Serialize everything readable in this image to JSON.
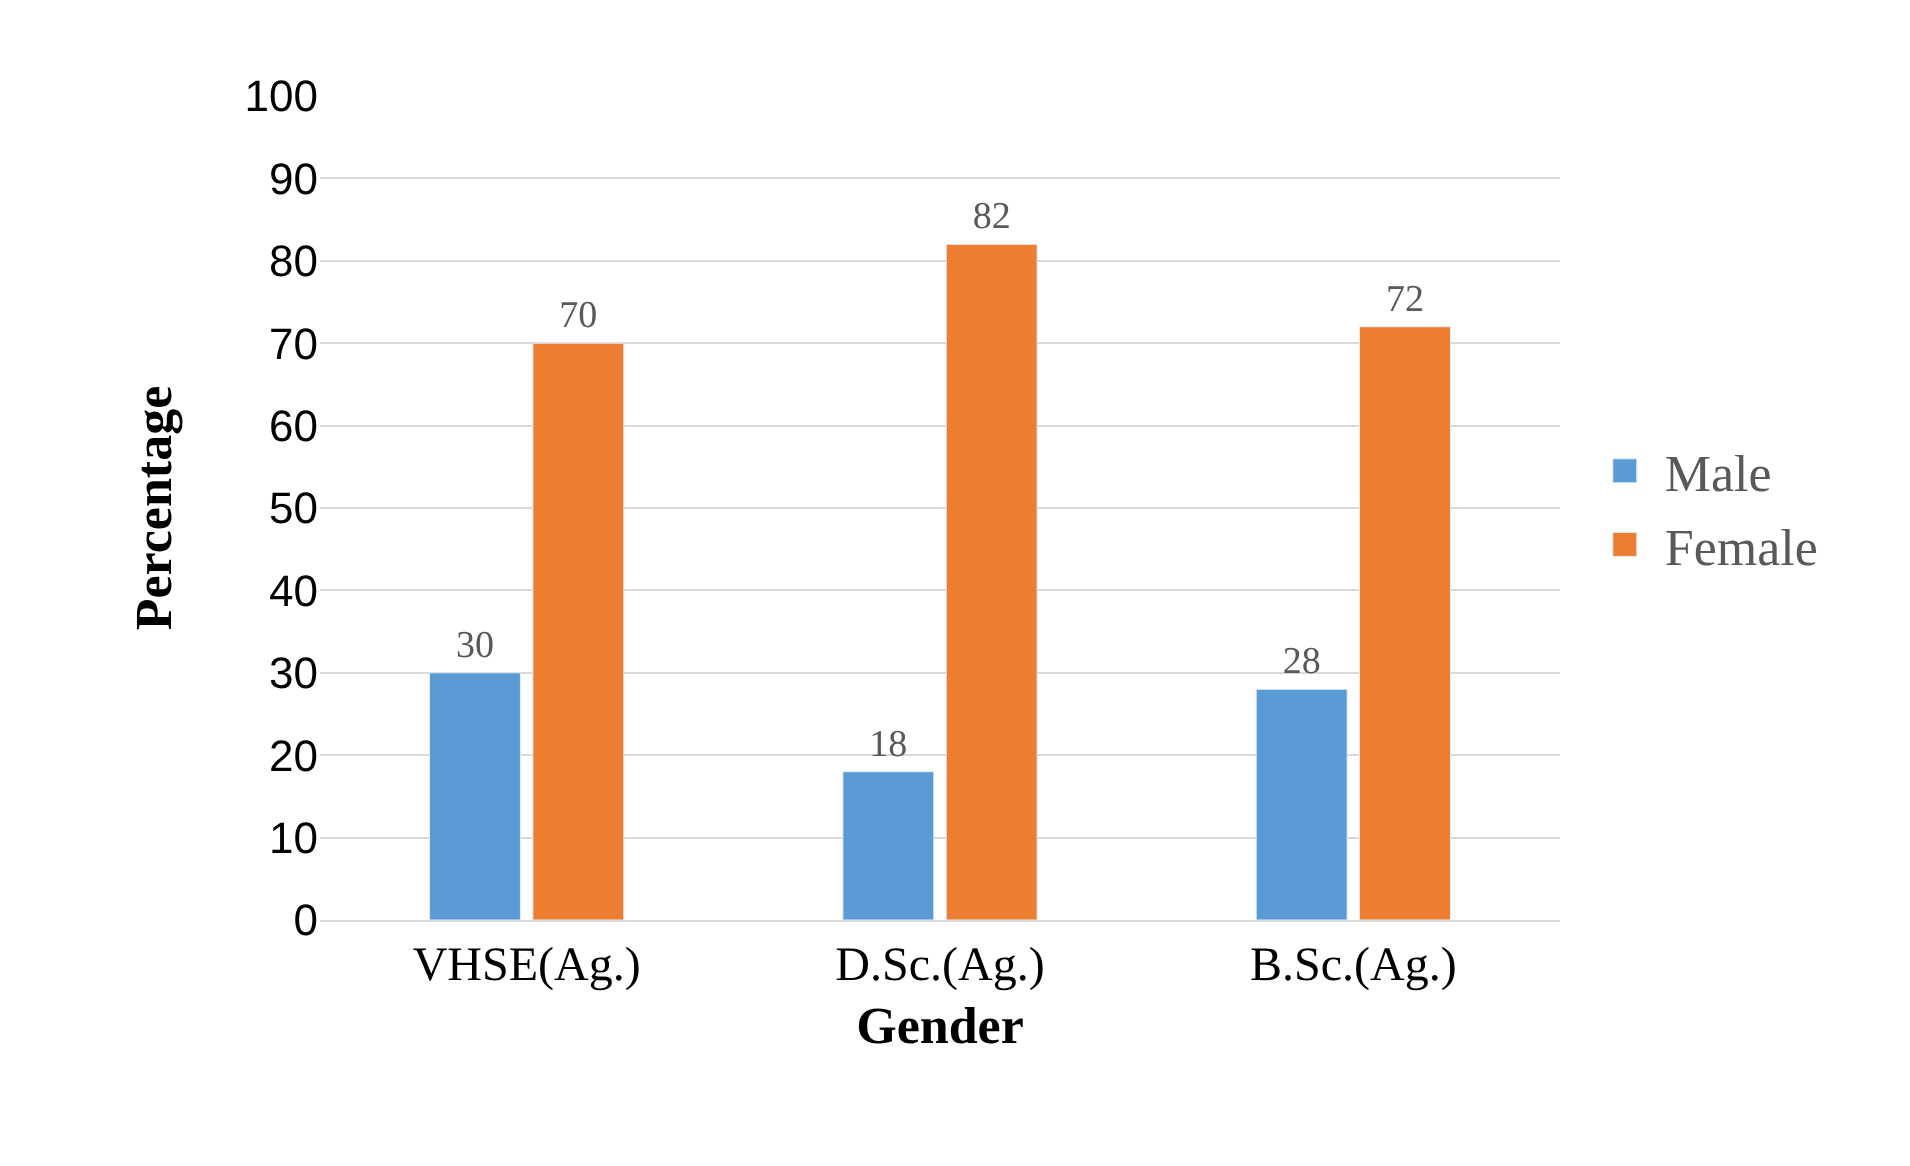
{
  "chart_data": {
    "type": "bar",
    "xlabel": "Gender",
    "ylabel": "Percentage",
    "categories": [
      "VHSE(Ag.)",
      "D.Sc.(Ag.)",
      "B.Sc.(Ag.)"
    ],
    "series": [
      {
        "name": "Male",
        "color": "#5b9bd5",
        "values": [
          30,
          18,
          28
        ]
      },
      {
        "name": "Female",
        "color": "#ed7d31",
        "values": [
          70,
          82,
          72
        ]
      }
    ],
    "ylim": [
      0,
      100
    ],
    "yticks": [
      0,
      10,
      20,
      30,
      40,
      50,
      60,
      70,
      80,
      90,
      100
    ],
    "grid": "y",
    "legend": "right",
    "data_labels": true
  }
}
